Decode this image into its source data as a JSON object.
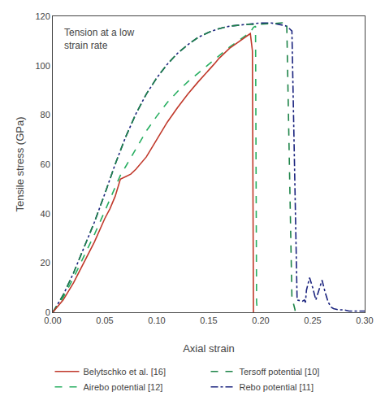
{
  "chart_data": {
    "type": "line",
    "title": "Tension at a low\nstrain rate",
    "xlabel": "Axial strain",
    "ylabel": "Tensile stress (GPa)",
    "xlim": [
      0.0,
      0.3
    ],
    "ylim": [
      0,
      120
    ],
    "xticks": [
      {
        "value": 0.0,
        "label": "0.00"
      },
      {
        "value": 0.05,
        "label": "0.05"
      },
      {
        "value": 0.1,
        "label": "0.10"
      },
      {
        "value": 0.15,
        "label": "0.15"
      },
      {
        "value": 0.2,
        "label": "0.20"
      },
      {
        "value": 0.25,
        "label": "0.25"
      },
      {
        "value": 0.3,
        "label": "0.30"
      }
    ],
    "yticks": [
      0,
      20,
      40,
      60,
      80,
      100,
      120
    ],
    "grid": false,
    "legend": "bottom",
    "series": [
      {
        "name": "Belytschko et al. [16]",
        "color": "#c0392b",
        "line_style": "solid",
        "x": [
          0.0,
          0.01,
          0.02,
          0.03,
          0.04,
          0.05,
          0.055,
          0.06,
          0.065,
          0.07,
          0.075,
          0.08,
          0.09,
          0.1,
          0.11,
          0.12,
          0.13,
          0.14,
          0.15,
          0.155,
          0.16,
          0.165,
          0.17,
          0.175,
          0.18,
          0.185,
          0.19,
          0.192,
          0.193,
          0.193
        ],
        "values": [
          0.0,
          5.0,
          12.0,
          20.0,
          28.5,
          38.0,
          42.0,
          47.0,
          54.0,
          55.0,
          56.0,
          58.0,
          63.0,
          70.0,
          77.0,
          83.0,
          88.5,
          93.5,
          98.0,
          100.5,
          103.0,
          105.0,
          107.0,
          108.5,
          110.0,
          111.5,
          113.0,
          106.0,
          2.0,
          0.0
        ]
      },
      {
        "name": "Tersoff potential [10]",
        "color": "#1e8449",
        "line_style": "dash",
        "x": [
          0.0,
          0.01,
          0.02,
          0.03,
          0.04,
          0.05,
          0.06,
          0.07,
          0.08,
          0.09,
          0.1,
          0.11,
          0.12,
          0.13,
          0.14,
          0.15,
          0.16,
          0.17,
          0.18,
          0.185,
          0.19,
          0.195,
          0.2,
          0.21,
          0.215,
          0.22,
          0.225,
          0.23,
          0.232,
          0.233,
          0.233
        ],
        "values": [
          0.0,
          7.0,
          16.0,
          26.0,
          36.5,
          48.0,
          60.0,
          71.0,
          80.5,
          88.5,
          95.0,
          100.5,
          105.0,
          108.5,
          111.5,
          113.5,
          115.0,
          116.0,
          116.5,
          116.8,
          116.8,
          116.5,
          116.8,
          117.0,
          117.2,
          117.5,
          117.5,
          6.0,
          3.0,
          1.0,
          0.0
        ]
      },
      {
        "name": "Airebo potential [12]",
        "color": "#27ae60",
        "line_style": "dash",
        "x": [
          0.0,
          0.01,
          0.02,
          0.03,
          0.04,
          0.05,
          0.06,
          0.065,
          0.07,
          0.08,
          0.09,
          0.1,
          0.11,
          0.12,
          0.13,
          0.14,
          0.15,
          0.16,
          0.17,
          0.18,
          0.185,
          0.19,
          0.193,
          0.195,
          0.196,
          0.197,
          0.197
        ],
        "values": [
          0.0,
          6.0,
          14.0,
          22.5,
          31.5,
          41.0,
          50.5,
          55.5,
          59.0,
          66.5,
          73.5,
          79.5,
          85.0,
          89.5,
          93.5,
          97.0,
          100.5,
          104.0,
          107.5,
          110.5,
          112.0,
          113.5,
          115.5,
          116.0,
          4.0,
          1.0,
          0.0
        ]
      },
      {
        "name": "Rebo potential [11]",
        "color": "#1a237e",
        "line_style": "dashdot",
        "x": [
          0.0,
          0.01,
          0.02,
          0.03,
          0.04,
          0.05,
          0.06,
          0.07,
          0.08,
          0.09,
          0.1,
          0.11,
          0.12,
          0.13,
          0.14,
          0.15,
          0.16,
          0.17,
          0.18,
          0.19,
          0.2,
          0.21,
          0.215,
          0.22,
          0.225,
          0.23,
          0.235,
          0.24,
          0.242,
          0.243,
          0.244,
          0.247,
          0.25,
          0.253,
          0.256,
          0.259,
          0.262,
          0.265,
          0.268,
          0.27,
          0.275,
          0.28,
          0.285,
          0.29,
          0.3
        ],
        "values": [
          0.0,
          7.0,
          16.0,
          26.0,
          36.5,
          48.0,
          60.0,
          71.0,
          80.5,
          88.5,
          95.0,
          100.5,
          105.0,
          108.5,
          111.5,
          113.5,
          115.0,
          116.0,
          116.5,
          117.0,
          117.3,
          117.3,
          117.0,
          116.5,
          116.0,
          114.0,
          5.0,
          4.5,
          5.0,
          4.0,
          9.0,
          14.0,
          10.0,
          5.0,
          9.0,
          13.0,
          8.0,
          4.0,
          2.0,
          1.5,
          1.0,
          1.0,
          0.5,
          0.5,
          0.5
        ]
      }
    ]
  }
}
